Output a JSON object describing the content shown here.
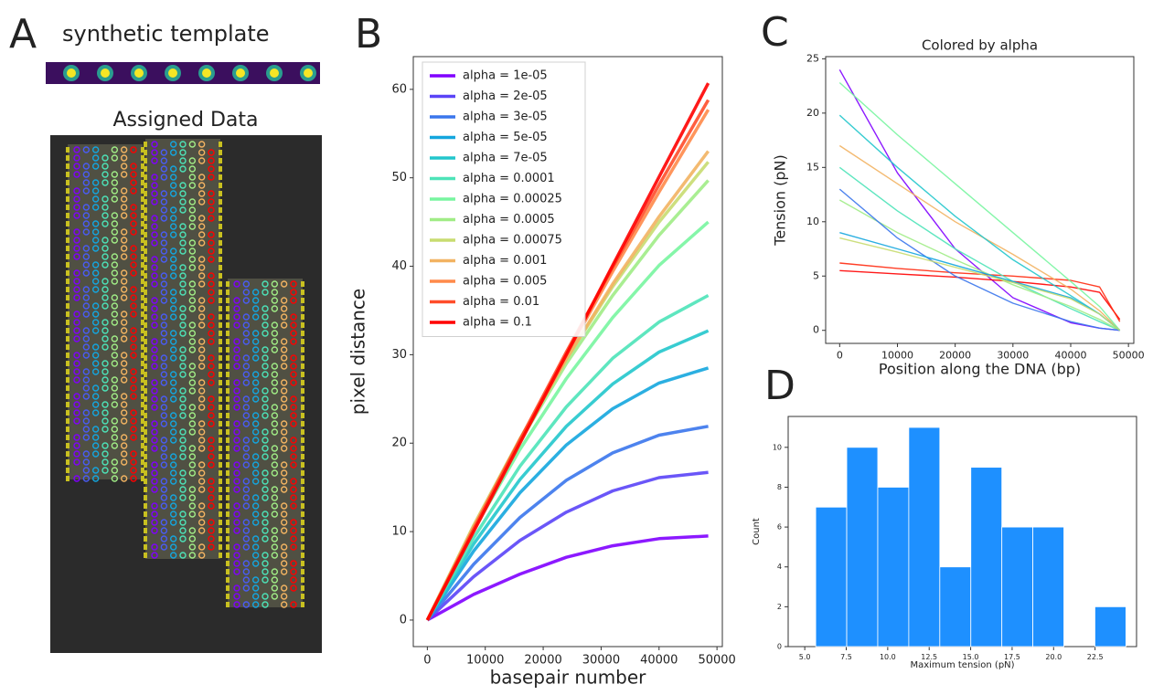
{
  "panel_labels": [
    "A",
    "B",
    "C",
    "D"
  ],
  "panel_a": {
    "template_label": "synthetic template",
    "title": "Assigned Data"
  },
  "chart_data": [
    {
      "type": "line",
      "xlabel": "basepair number",
      "ylabel": "pixel distance",
      "x": [
        0,
        8000,
        16000,
        24000,
        32000,
        40000,
        48500
      ],
      "xlim": [
        -2425,
        50925
      ],
      "xticks": [
        0,
        10000,
        20000,
        30000,
        40000,
        50000
      ],
      "ylim": [
        -3.0,
        63.7
      ],
      "yticks": [
        0,
        10,
        20,
        30,
        40,
        50,
        60
      ],
      "legend": "upper left",
      "series": [
        {
          "name": "alpha = 1e-05",
          "color": "#8000ff",
          "values": [
            0,
            2.9,
            5.2,
            7.1,
            8.4,
            9.2,
            9.5
          ]
        },
        {
          "name": "alpha = 2e-05",
          "color": "#5a44f7",
          "values": [
            0,
            4.9,
            9.0,
            12.2,
            14.6,
            16.1,
            16.7
          ]
        },
        {
          "name": "alpha = 3e-05",
          "color": "#3a76ec",
          "values": [
            0,
            6.3,
            11.6,
            15.8,
            18.9,
            20.9,
            21.9
          ]
        },
        {
          "name": "alpha = 5e-05",
          "color": "#14a6de",
          "values": [
            0,
            7.8,
            14.4,
            19.8,
            23.9,
            26.8,
            28.5
          ]
        },
        {
          "name": "alpha = 7e-05",
          "color": "#22c6cc",
          "values": [
            0,
            8.6,
            15.9,
            21.9,
            26.7,
            30.3,
            32.7
          ]
        },
        {
          "name": "alpha = 0.0001",
          "color": "#4de3b8",
          "values": [
            0,
            9.3,
            17.4,
            24.1,
            29.6,
            33.7,
            36.7
          ]
        },
        {
          "name": "alpha = 0.00025",
          "color": "#78f5a0",
          "values": [
            0,
            10.2,
            19.3,
            27.3,
            34.2,
            40.1,
            45
          ]
        },
        {
          "name": "alpha = 0.0005",
          "color": "#a0ec86",
          "values": [
            0,
            10.6,
            20.2,
            29.0,
            36.7,
            43.5,
            49.7
          ]
        },
        {
          "name": "alpha = 0.00075",
          "color": "#c8dc70",
          "values": [
            0,
            10.7,
            20.5,
            29.5,
            37.7,
            45.0,
            51.8
          ]
        },
        {
          "name": "alpha = 0.001",
          "color": "#f2b362",
          "values": [
            0,
            10.6,
            20.4,
            29.5,
            38.0,
            45.6,
            53
          ]
        },
        {
          "name": "alpha = 0.005",
          "color": "#ff8a4a",
          "values": [
            0,
            10.3,
            20.3,
            30.0,
            39.4,
            48.4,
            57.7
          ]
        },
        {
          "name": "alpha = 0.01",
          "color": "#ff4d2a",
          "values": [
            0,
            10.3,
            20.4,
            30.3,
            39.9,
            49.2,
            58.8
          ]
        },
        {
          "name": "alpha = 0.1",
          "color": "#ff0000",
          "values": [
            0,
            10.0,
            20.0,
            30.0,
            40.1,
            50.1,
            60.7
          ]
        }
      ]
    },
    {
      "type": "line",
      "title": "Colored by alpha",
      "xlabel": "Position along the DNA (bp)",
      "ylabel": "Tension (pN)",
      "x": [
        0,
        10000,
        20000,
        30000,
        40000,
        45000,
        48500
      ],
      "xlim": [
        -2425,
        50925
      ],
      "xticks": [
        0,
        10000,
        20000,
        30000,
        40000,
        50000
      ],
      "ylim": [
        -1.2,
        25.2
      ],
      "yticks": [
        0,
        5,
        10,
        15,
        20,
        25
      ],
      "series": [
        {
          "color": "#8000ff",
          "values": [
            24,
            14.5,
            7.5,
            3,
            0.7,
            0.2,
            0
          ]
        },
        {
          "color": "#ff0000",
          "values": [
            5.5,
            5.2,
            4.9,
            4.5,
            4.0,
            3.5,
            1
          ]
        },
        {
          "color": "#ff2a10",
          "values": [
            6.2,
            5.7,
            5.3,
            5.0,
            4.6,
            4.0,
            0.8
          ]
        },
        {
          "color": "#f2b362",
          "values": [
            17,
            13.5,
            10,
            7,
            3.8,
            1.8,
            0
          ]
        },
        {
          "color": "#22c6cc",
          "values": [
            19.8,
            15,
            10.5,
            6.5,
            3.2,
            1.5,
            0
          ]
        },
        {
          "color": "#4de3b8",
          "values": [
            15,
            11,
            7.5,
            4.5,
            2,
            0.8,
            0
          ]
        },
        {
          "color": "#a0ec86",
          "values": [
            12,
            9,
            6.5,
            4.2,
            2.2,
            1,
            0
          ]
        },
        {
          "color": "#78f5a0",
          "values": [
            22.8,
            18,
            13.5,
            9,
            4.5,
            2.2,
            0
          ]
        },
        {
          "color": "#3a76ec",
          "values": [
            13,
            8.5,
            5,
            2.5,
            0.8,
            0.2,
            0
          ]
        },
        {
          "color": "#14a6de",
          "values": [
            9,
            7.5,
            6,
            4.5,
            3,
            1.5,
            0
          ]
        },
        {
          "color": "#c8dc70",
          "values": [
            8.5,
            7.2,
            5.8,
            4.4,
            2.9,
            1.5,
            0
          ]
        }
      ]
    },
    {
      "type": "histogram",
      "xlabel": "Maximum tension (pN)",
      "ylabel": "Count",
      "color": "#1e90ff",
      "bins": [
        5.66,
        7.53,
        9.4,
        11.27,
        13.14,
        15.01,
        16.88,
        18.75,
        20.62,
        22.49,
        24.36
      ],
      "values": [
        7,
        10,
        8,
        11,
        4,
        9,
        6,
        6,
        0,
        2
      ],
      "xlim": [
        4.0,
        25.0
      ],
      "xticks": [
        {
          "value": 5.0,
          "label": "5.0"
        },
        7.5,
        {
          "value": 10.0,
          "label": "10.0"
        },
        12.5,
        {
          "value": 15.0,
          "label": "15.0"
        },
        17.5,
        {
          "value": 20.0,
          "label": "20.0"
        },
        22.5
      ],
      "ylim": [
        0,
        11.55
      ],
      "yticks": [
        0,
        2,
        4,
        6,
        8,
        10
      ]
    }
  ]
}
